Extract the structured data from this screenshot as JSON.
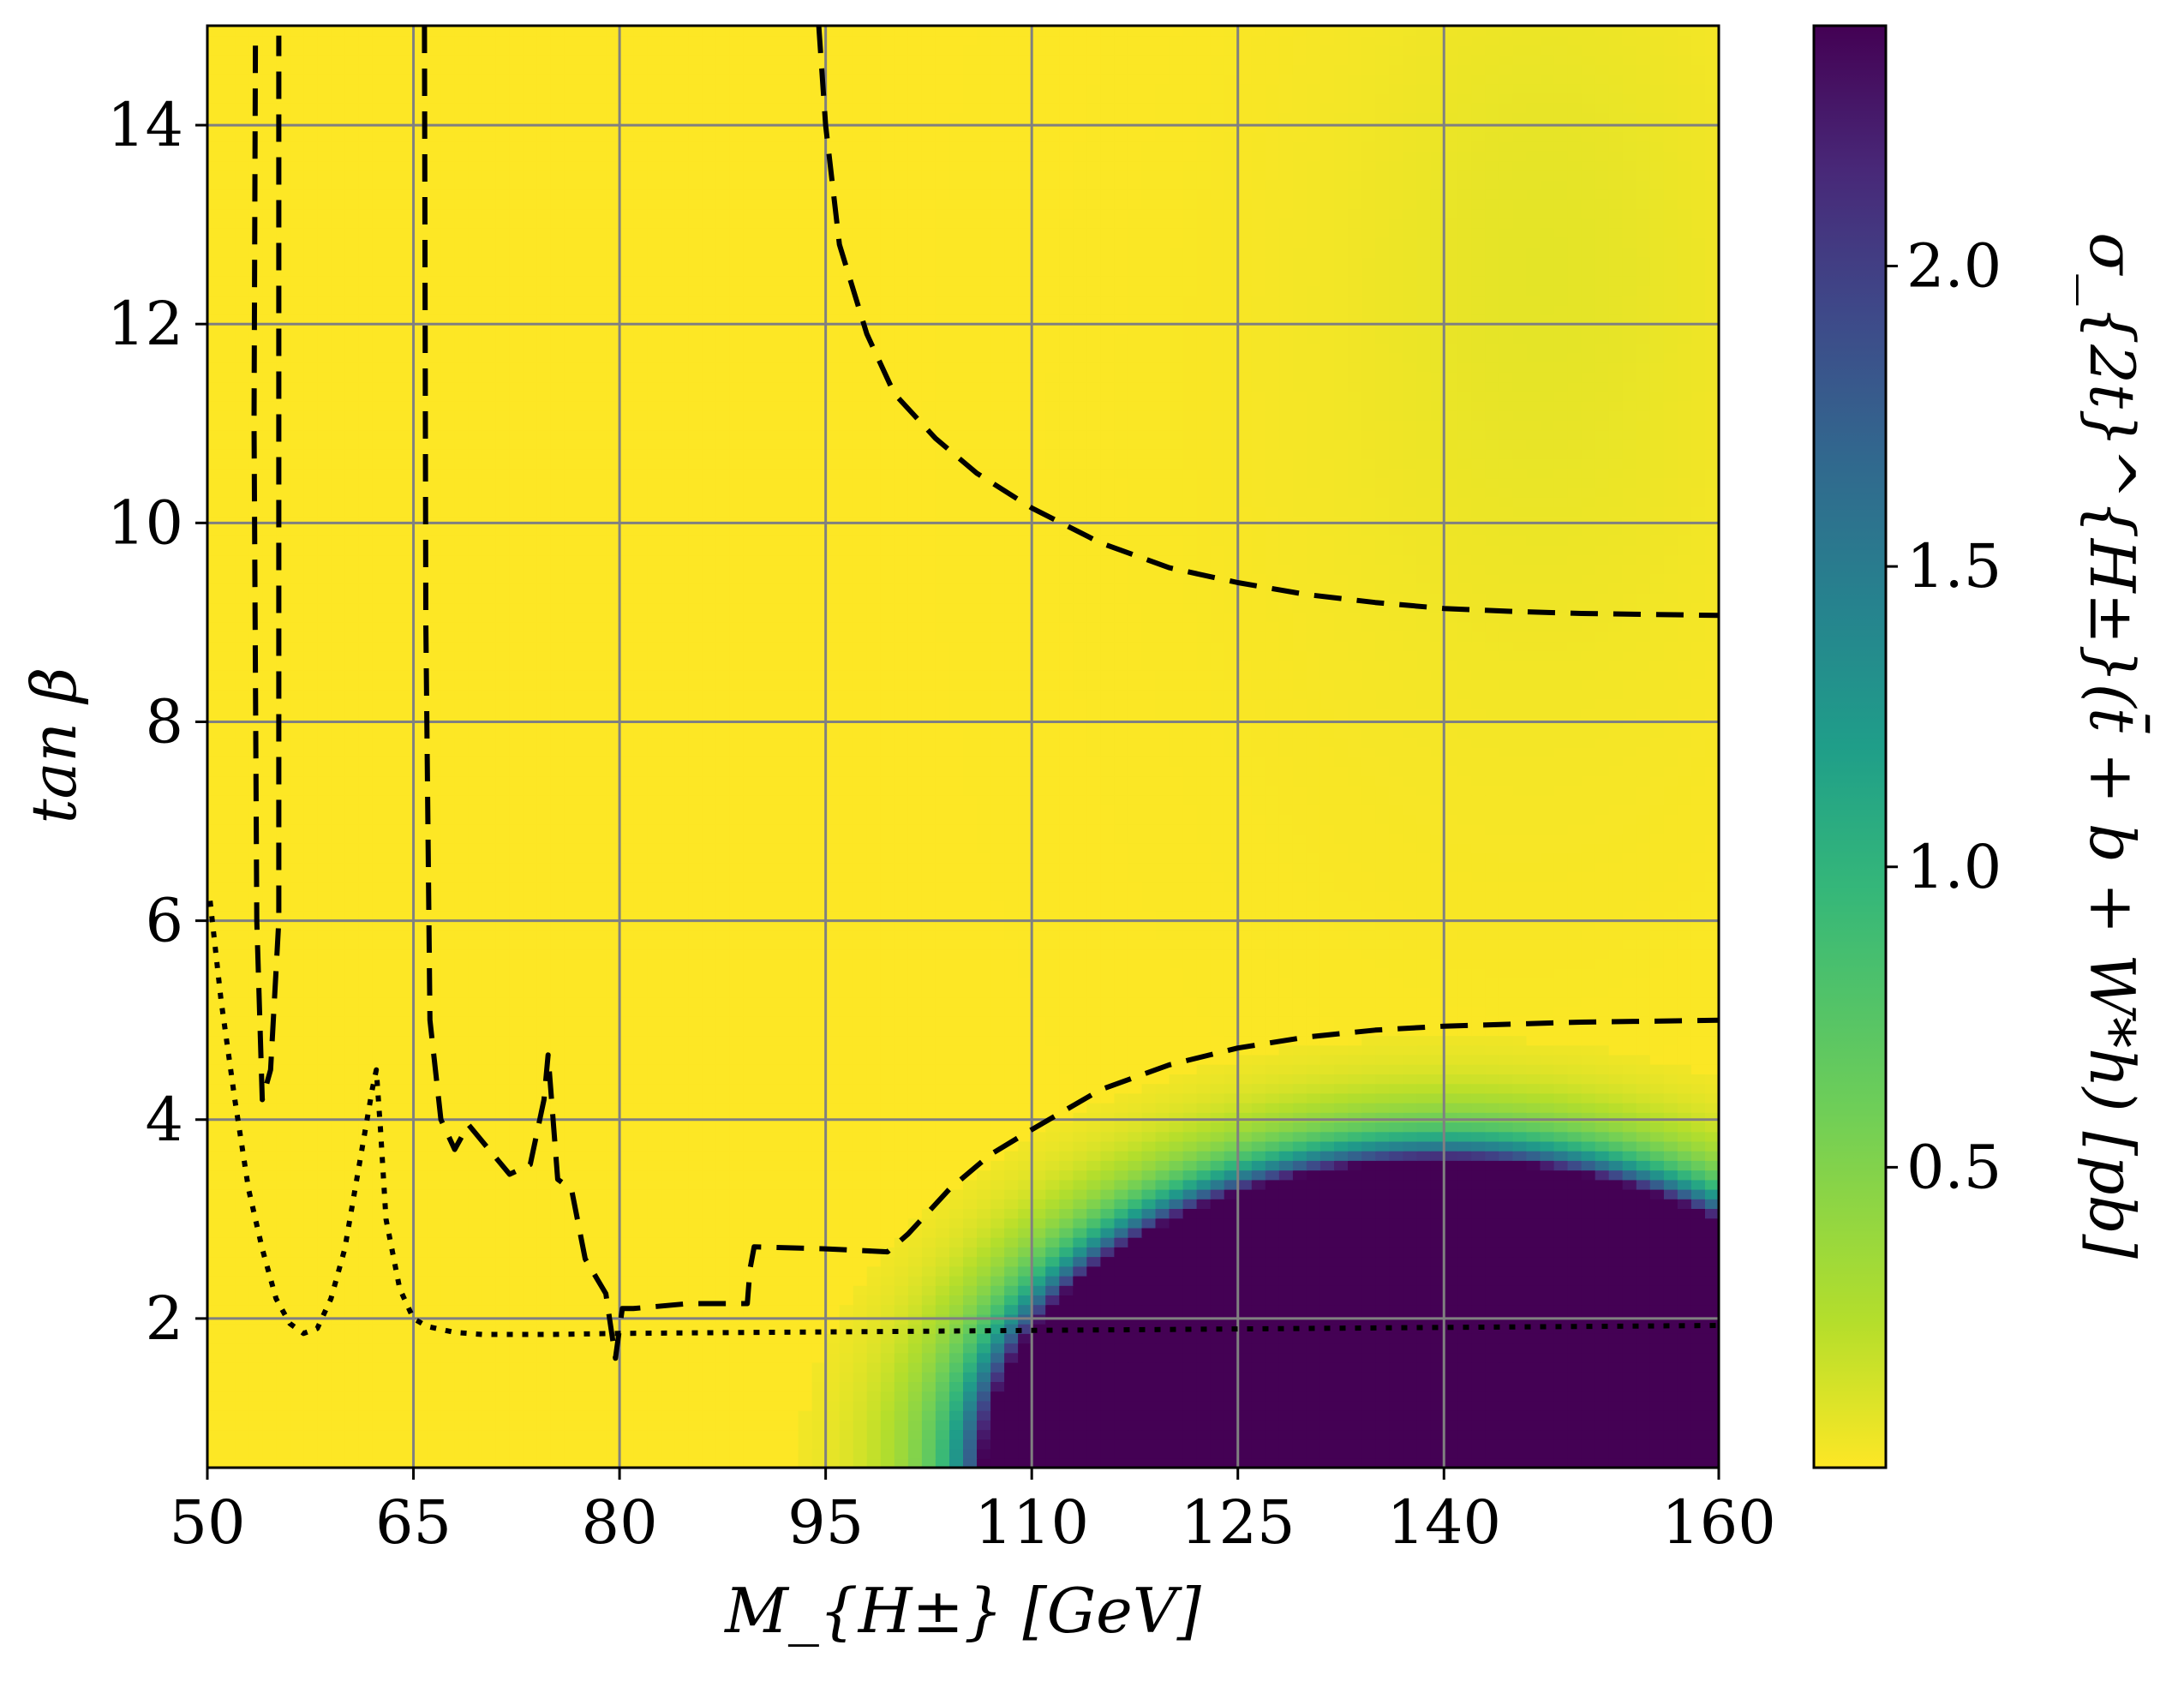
{
  "chart_data": {
    "type": "heatmap",
    "title": "",
    "xlabel": "M_{H±} [GeV]",
    "ylabel": "tan β",
    "colorbar_label": "σ_{2t}^{H±}(t̄ + b + W*h) [pb]",
    "xlim": [
      50,
      160
    ],
    "ylim": [
      0.5,
      15
    ],
    "x_ticks": [
      50,
      65,
      80,
      95,
      110,
      125,
      140,
      160
    ],
    "y_ticks": [
      2,
      4,
      6,
      8,
      10,
      12,
      14
    ],
    "colorbar_range": [
      0,
      2.4
    ],
    "colorbar_ticks": [
      0.5,
      1.0,
      1.5,
      2.0
    ],
    "colorbar_tick_labels": [
      "0.5",
      "1.0",
      "1.5",
      "2.0"
    ],
    "colormap": "viridis_r",
    "grid": true,
    "grid_color": "#808080",
    "series": [
      {
        "style": "dashed",
        "x": [
          53.5,
          53.4,
          53.6,
          54.0,
          54.6,
          55.2,
          55.2
        ],
        "y": [
          14.8,
          11.0,
          6.0,
          4.2,
          4.5,
          6.0,
          14.9
        ]
      },
      {
        "style": "dashed",
        "x": [
          65.8,
          65.9,
          66.2,
          67.0,
          68.0,
          69.0,
          70.5,
          72.0,
          73.5,
          74.5,
          74.8,
          75.5,
          76.5,
          77.5,
          79.0,
          79.7,
          80.2,
          81.0,
          85.0,
          89.3,
          89.5,
          89.8,
          95.0,
          99.5,
          101.0,
          104.0,
          107.0,
          110.0,
          115.0,
          120.0,
          125.0,
          130.0,
          135.0,
          140.0,
          145.0,
          150.0,
          155.0,
          160.0
        ],
        "y": [
          15.0,
          9.0,
          5.0,
          4.0,
          3.7,
          3.95,
          3.7,
          3.45,
          3.55,
          4.2,
          4.65,
          3.4,
          3.3,
          2.6,
          2.25,
          1.6,
          2.1,
          2.1,
          2.15,
          2.15,
          2.5,
          2.72,
          2.7,
          2.67,
          2.85,
          3.3,
          3.65,
          3.9,
          4.3,
          4.55,
          4.72,
          4.83,
          4.9,
          4.94,
          4.96,
          4.98,
          4.99,
          5.0
        ]
      },
      {
        "style": "dashed",
        "x": [
          94.5,
          95.0,
          96.0,
          98.0,
          100.0,
          103.0,
          106.0,
          110.0,
          115.0,
          120.0,
          125.0,
          130.0,
          135.0,
          140.0,
          145.0,
          150.0,
          155.0,
          160.0
        ],
        "y": [
          15.0,
          14.0,
          12.8,
          11.9,
          11.3,
          10.85,
          10.5,
          10.15,
          9.8,
          9.55,
          9.4,
          9.28,
          9.2,
          9.14,
          9.11,
          9.09,
          9.08,
          9.07
        ]
      },
      {
        "style": "dotted",
        "x": [
          50.2,
          51.0,
          52.0,
          53.0,
          54.0,
          55.0,
          56.0,
          57.0,
          58.0,
          59.0,
          60.0,
          61.0,
          62.0,
          62.3,
          62.6,
          63.0,
          64.0,
          65.0,
          66.0,
          68.0,
          70.0,
          75.0,
          80.0,
          90.0,
          100.0,
          110.0,
          120.0,
          130.0,
          140.0,
          150.0,
          160.0
        ],
        "y": [
          6.2,
          5.2,
          4.2,
          3.3,
          2.7,
          2.2,
          1.95,
          1.85,
          1.9,
          2.2,
          2.7,
          3.5,
          4.3,
          4.5,
          3.9,
          3.0,
          2.3,
          2.0,
          1.92,
          1.86,
          1.84,
          1.84,
          1.85,
          1.86,
          1.87,
          1.88,
          1.89,
          1.9,
          1.91,
          1.92,
          1.93
        ]
      }
    ]
  }
}
